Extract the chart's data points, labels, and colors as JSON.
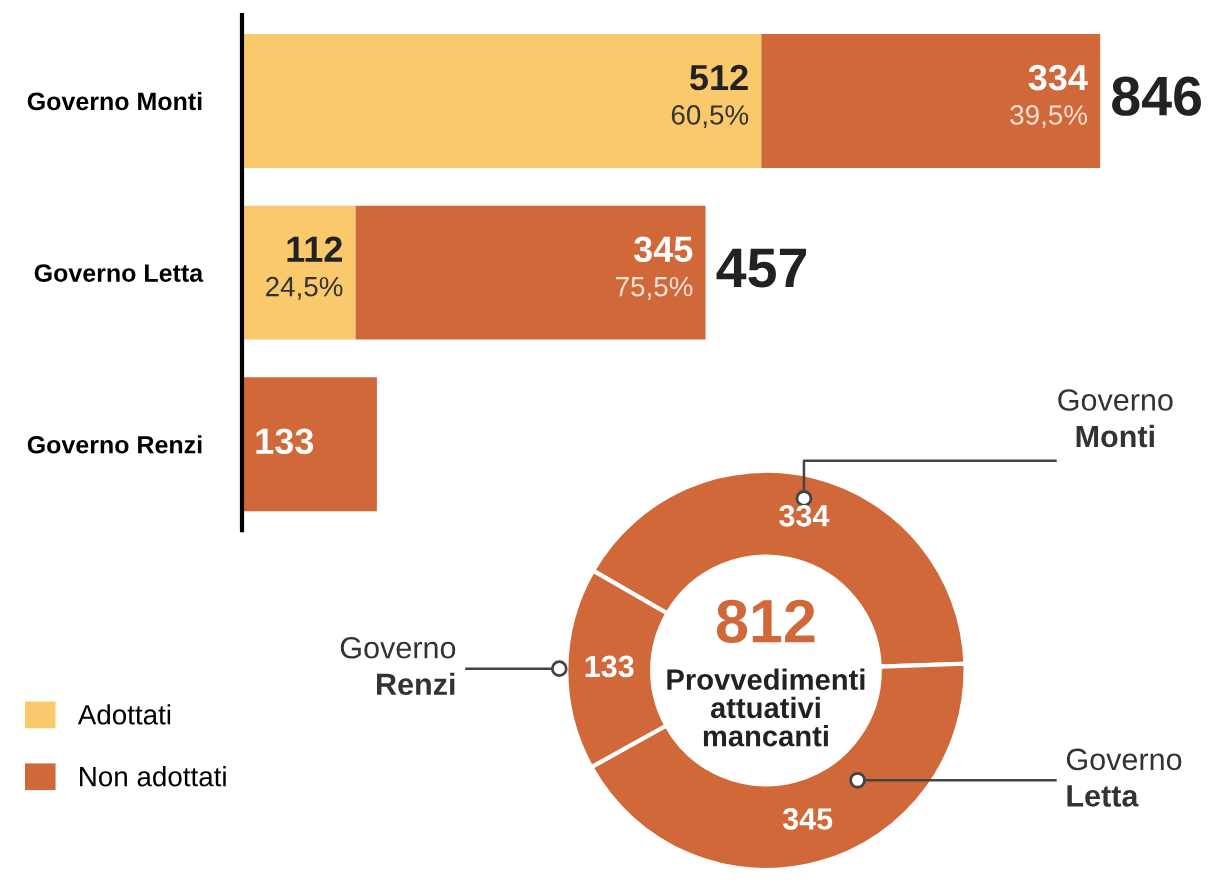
{
  "chart_data": [
    {
      "type": "bar",
      "orientation": "horizontal",
      "stacked": true,
      "categories": [
        "Governo Monti",
        "Governo Letta",
        "Governo Renzi"
      ],
      "series": [
        {
          "name": "Adottati",
          "color": "#f9c96b",
          "values": [
            512,
            112,
            null
          ],
          "value_labels": [
            "512\n60,5%",
            "112\n24,5%",
            null
          ]
        },
        {
          "name": "Non adottati",
          "color": "#d0683a",
          "values": [
            334,
            345,
            133
          ],
          "value_labels": [
            "334\n39,5%",
            "345\n75,5%",
            "133"
          ]
        }
      ],
      "totals": [
        "846",
        "457",
        null
      ],
      "tick_labels": "y",
      "legend": "bottom left",
      "grid": false
    },
    {
      "type": "donut",
      "categories": [
        "Governo Monti",
        "Governo Letta",
        "Governo Renzi"
      ],
      "values": [
        334,
        345,
        133
      ],
      "colors": [
        "#d0683a",
        "#d0683a",
        "#d0683a"
      ],
      "data_labels": true,
      "annotations": [
        "812",
        "Provvedimenti\nattuativi\nmancanti"
      ]
    }
  ]
}
